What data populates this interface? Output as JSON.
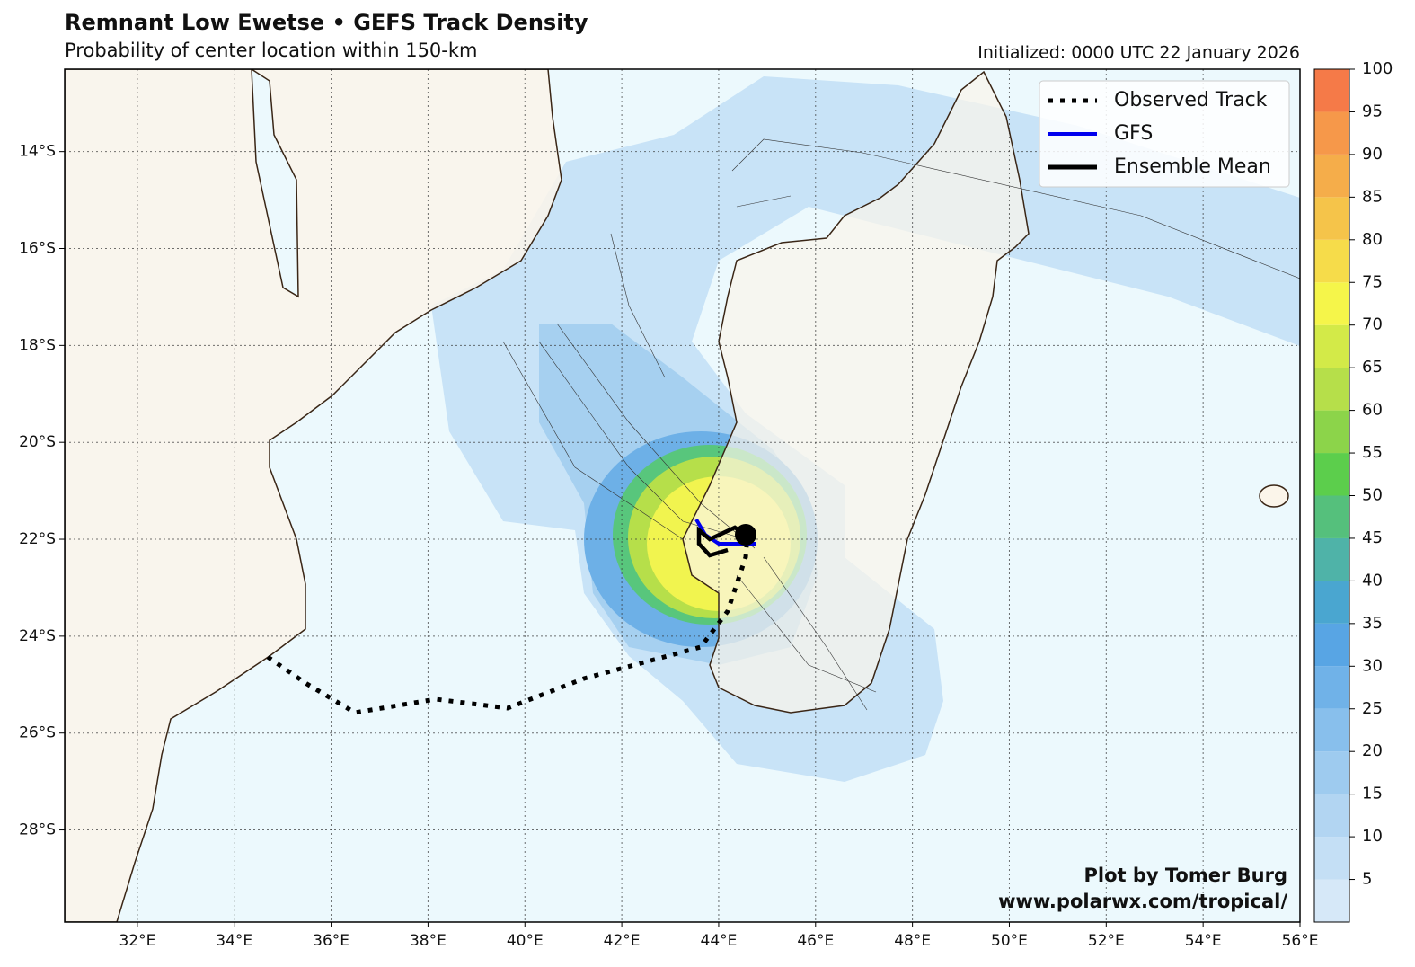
{
  "header": {
    "title": "Remnant Low Ewetse • GEFS Track Density",
    "subtitle": "Probability of center location within 150-km",
    "initialized": "Initialized: 0000 UTC 22 January 2026"
  },
  "map": {
    "xlim": [
      30.5,
      56
    ],
    "ylim": [
      -29.9,
      -12.3
    ],
    "xticks": [
      {
        "value": 32,
        "label": "32°E"
      },
      {
        "value": 34,
        "label": "34°E"
      },
      {
        "value": 36,
        "label": "36°E"
      },
      {
        "value": 38,
        "label": "38°E"
      },
      {
        "value": 40,
        "label": "40°E"
      },
      {
        "value": 42,
        "label": "42°E"
      },
      {
        "value": 44,
        "label": "44°E"
      },
      {
        "value": 46,
        "label": "46°E"
      },
      {
        "value": 48,
        "label": "48°E"
      },
      {
        "value": 50,
        "label": "50°E"
      },
      {
        "value": 52,
        "label": "52°E"
      },
      {
        "value": 54,
        "label": "54°E"
      },
      {
        "value": 56,
        "label": "56°E"
      }
    ],
    "yticks": [
      {
        "value": -14,
        "label": "14°S"
      },
      {
        "value": -16,
        "label": "16°S"
      },
      {
        "value": -18,
        "label": "18°S"
      },
      {
        "value": -20,
        "label": "20°S"
      },
      {
        "value": -22,
        "label": "22°S"
      },
      {
        "value": -24,
        "label": "24°S"
      },
      {
        "value": -26,
        "label": "26°S"
      },
      {
        "value": -28,
        "label": "28°S"
      }
    ],
    "grid": true
  },
  "legend": {
    "items": [
      {
        "name": "Observed Track",
        "color": "#000000"
      },
      {
        "name": "GFS",
        "color": "#0000ee"
      },
      {
        "name": "Ensemble Mean",
        "color": "#000000"
      }
    ]
  },
  "colorbar": {
    "lim": [
      0,
      100
    ],
    "ticks": [
      5,
      10,
      15,
      20,
      25,
      30,
      35,
      40,
      45,
      50,
      55,
      60,
      65,
      70,
      75,
      80,
      85,
      90,
      95,
      100
    ],
    "colors": [
      "#d6e8f8",
      "#c4dff5",
      "#b2d5f2",
      "#9ecbef",
      "#88bfec",
      "#70b2e8",
      "#58a5e4",
      "#4aa6d0",
      "#4fb3a8",
      "#55c07c",
      "#5cce4c",
      "#8cd44a",
      "#b6df4a",
      "#d3ea48",
      "#f5f54a",
      "#f6dc4a",
      "#f5c44a",
      "#f5ad4a",
      "#f6984a",
      "#f57a48"
    ]
  },
  "credit": {
    "line1": "Plot by Tomer Burg",
    "line2": "www.polarwx.com/tropical/"
  }
}
